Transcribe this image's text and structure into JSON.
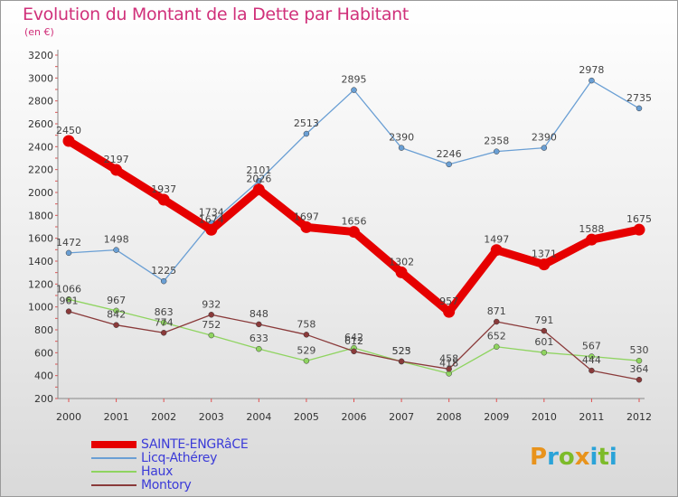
{
  "header": {
    "title": "Evolution du Montant de la Dette par Habitant",
    "subtitle": "(en €)"
  },
  "logo": {
    "letters": [
      "P",
      "r",
      "o",
      "x",
      "i",
      "t",
      "i"
    ],
    "colors": [
      "#e8931c",
      "#2aa3d8",
      "#7dbb2a",
      "#e8931c",
      "#2aa3d8",
      "#7dbb2a",
      "#2aa3d8"
    ]
  },
  "chart_data": {
    "type": "line",
    "title": "Evolution du Montant de la Dette par Habitant",
    "subtitle": "(en €)",
    "x": [
      "2000",
      "2001",
      "2002",
      "2003",
      "2004",
      "2005",
      "2006",
      "2007",
      "2008",
      "2009",
      "2010",
      "2011",
      "2012"
    ],
    "ylim": [
      200,
      3200
    ],
    "yticks": [
      200,
      400,
      600,
      800,
      1000,
      1200,
      1400,
      1600,
      1800,
      2000,
      2200,
      2400,
      2600,
      2800,
      3000,
      3200
    ],
    "grid": false,
    "legend_position": "bottom-left",
    "series": [
      {
        "name": "SAINTE-ENGRâCE",
        "color": "#e60000",
        "highlight": true,
        "values": [
          2450,
          2197,
          1937,
          1674,
          2026,
          1697,
          1656,
          1302,
          957,
          1497,
          1371,
          1588,
          1675
        ]
      },
      {
        "name": "Licq-Athérey",
        "color": "#6a9fd4",
        "highlight": false,
        "values": [
          1472,
          1498,
          1225,
          1734,
          2101,
          2513,
          2895,
          2390,
          2246,
          2358,
          2390,
          2978,
          2735
        ]
      },
      {
        "name": "Haux",
        "color": "#8fd460",
        "highlight": false,
        "values": [
          1066,
          967,
          863,
          752,
          633,
          529,
          642,
          523,
          418,
          652,
          601,
          567,
          530
        ]
      },
      {
        "name": "Montory",
        "color": "#8a3a3a",
        "highlight": false,
        "values": [
          961,
          842,
          774,
          932,
          848,
          758,
          612,
          525,
          458,
          871,
          791,
          444,
          364
        ]
      }
    ]
  }
}
